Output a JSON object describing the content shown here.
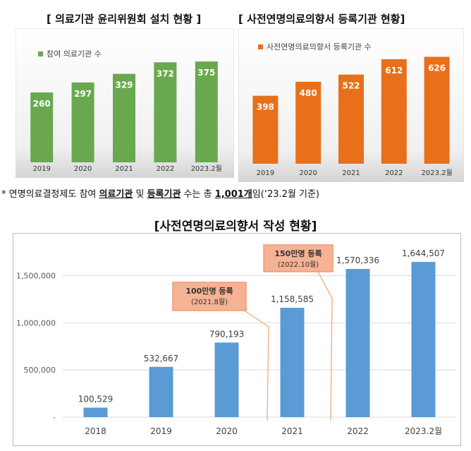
{
  "chart_data": [
    {
      "type": "bar",
      "title": "[ 의료기관 윤리위원회 설치 현황 ]",
      "legend": "참여 의료기관 수",
      "legend_position": "top-left",
      "categories": [
        "2019",
        "2020",
        "2021",
        "2022",
        "2023.2월"
      ],
      "values": [
        260,
        297,
        329,
        372,
        375
      ],
      "color": "#6aa84f",
      "ylim": [
        0,
        420
      ]
    },
    {
      "type": "bar",
      "title": "[ 사전연명의료의향서 등록기관 현황]",
      "legend": "사전연명의료의향서 등록기관 수",
      "legend_position": "top-left",
      "categories": [
        "2019",
        "2020",
        "2021",
        "2022",
        "2023.2월"
      ],
      "values": [
        398,
        480,
        522,
        612,
        626
      ],
      "color": "#e8701a",
      "ylim": [
        0,
        690
      ]
    },
    {
      "type": "bar",
      "title": "[사전연명의료의향서 작성 현황]",
      "categories": [
        "2018",
        "2019",
        "2020",
        "2021",
        "2022",
        "2023.2월"
      ],
      "values": [
        100529,
        532667,
        790193,
        1158585,
        1570336,
        1644507
      ],
      "value_labels": [
        "100,529",
        "532,667",
        "790,193",
        "1,158,585",
        "1,570,336",
        "1,644,507"
      ],
      "ylim": [
        0,
        1750000
      ],
      "yticks": [
        0,
        500000,
        1000000,
        1500000
      ],
      "ytick_labels": [
        "-",
        "500,000",
        "1,000,000",
        "1,500,000"
      ],
      "grid": true,
      "color": "#5b9bd5",
      "annotations": [
        {
          "line1": "100만명 등록",
          "line2": "(2021.8월)",
          "at": "2021"
        },
        {
          "line1": "150만명 등록",
          "line2": "(2022.10월)",
          "at": "2022"
        }
      ]
    }
  ],
  "note": {
    "prefix": "* 연명의료결정제도 참여 ",
    "term1": "의료기관",
    "and": " 및 ",
    "term2": "등록기관",
    "mid": " 수는 총 ",
    "total": "1,001개",
    "suffix": "임(‘23.2월 기준)"
  }
}
